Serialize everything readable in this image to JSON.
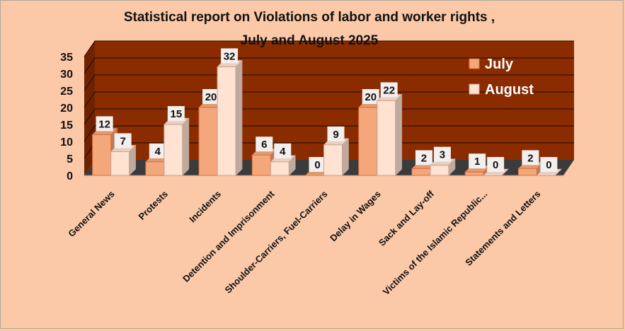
{
  "chart_data": {
    "type": "bar",
    "title_lines": [
      "Statistical report on Violations of labor and worker rights ,",
      "July and August 2025"
    ],
    "categories": [
      "General News",
      "Protests",
      "Incidents",
      "Detention and Imprisonment",
      "Shoulder-Carriers, Fuel-Carriers",
      "Delay in Wages",
      "Sack and Lay-off",
      "Victims of the Islamic Republic...",
      "Statements and Letters"
    ],
    "series": [
      {
        "name": "July",
        "values": [
          12,
          4,
          20,
          6,
          0,
          20,
          2,
          1,
          2
        ],
        "color": "#f4a77a",
        "edge": "#d9703c"
      },
      {
        "name": "August",
        "values": [
          7,
          15,
          32,
          4,
          9,
          22,
          3,
          0,
          0
        ],
        "color": "#ffe2d2",
        "edge": "#c7a090"
      }
    ],
    "yticks": [
      0,
      5,
      10,
      15,
      20,
      25,
      30,
      35
    ],
    "ylim": [
      0,
      35
    ],
    "grid": true,
    "legend_position": "top-right",
    "background_color": "#fbc8a8",
    "wall_color": "#8b2c00",
    "floor_color": "#3b3b3b"
  }
}
